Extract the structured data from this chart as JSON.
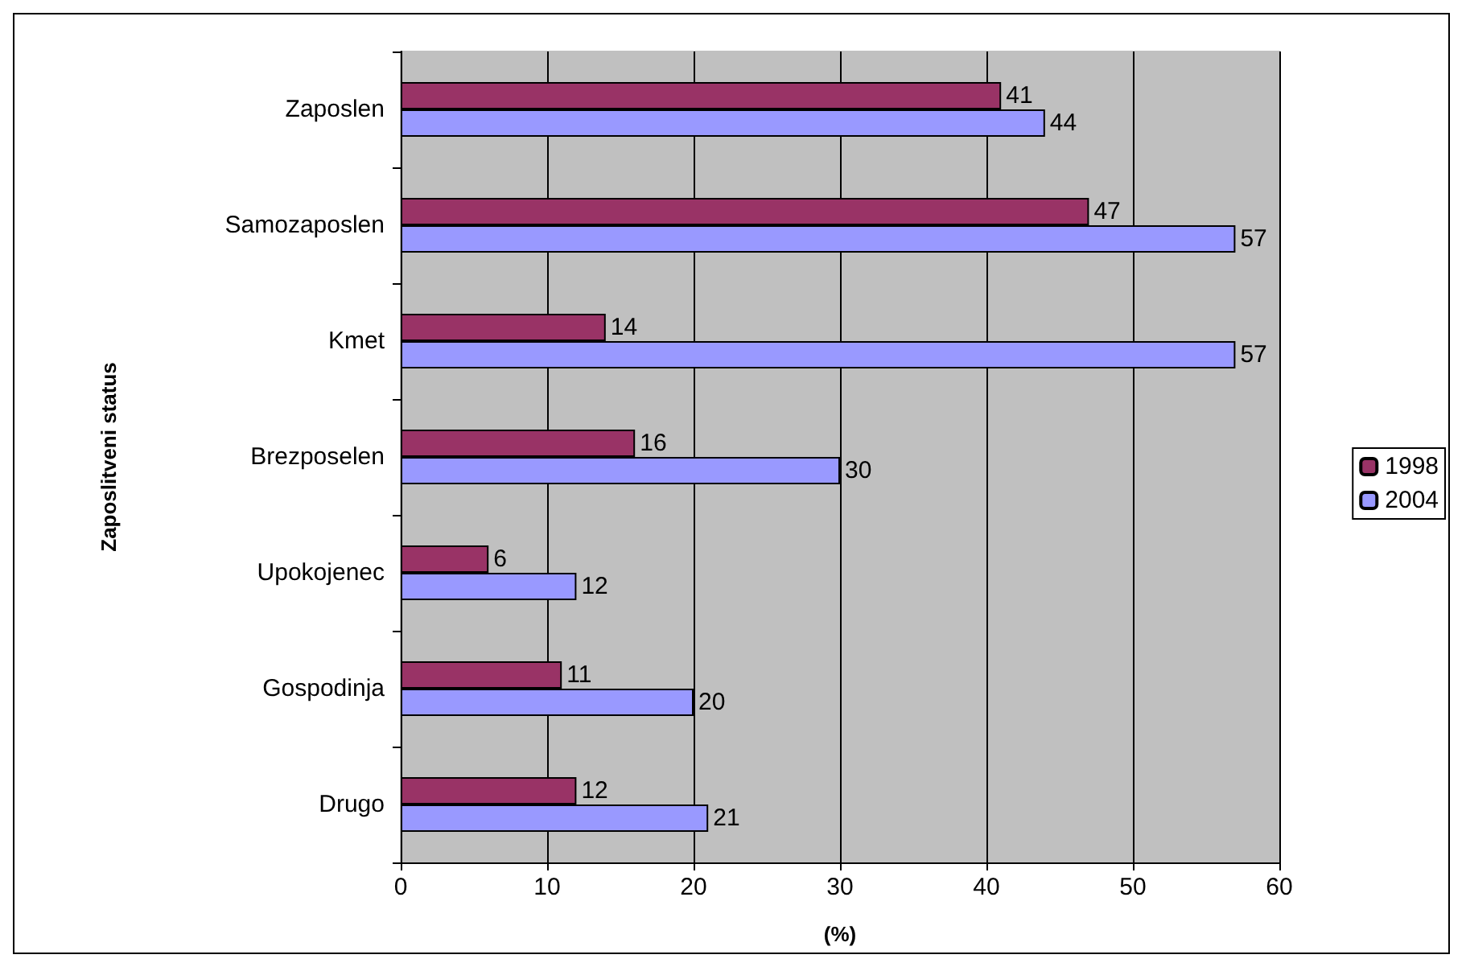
{
  "chart_data": {
    "type": "bar",
    "orientation": "horizontal",
    "xlabel": "(%)",
    "ylabel": "Zaposlitveni status",
    "categories": [
      "Zaposlen",
      "Samozaposlen",
      "Kmet",
      "Brezposelen",
      "Upokojenec",
      "Gospodinja",
      "Drugo"
    ],
    "series": [
      {
        "name": "1998",
        "color": "#993366",
        "values": [
          41,
          47,
          14,
          16,
          6,
          11,
          12
        ]
      },
      {
        "name": "2004",
        "color": "#9999ff",
        "values": [
          44,
          57,
          57,
          30,
          12,
          20,
          21
        ]
      }
    ],
    "xlim": [
      0,
      60
    ],
    "xticks": [
      0,
      10,
      20,
      30,
      40,
      50,
      60
    ],
    "grid": "x",
    "legend": "right",
    "data_labels": true
  }
}
